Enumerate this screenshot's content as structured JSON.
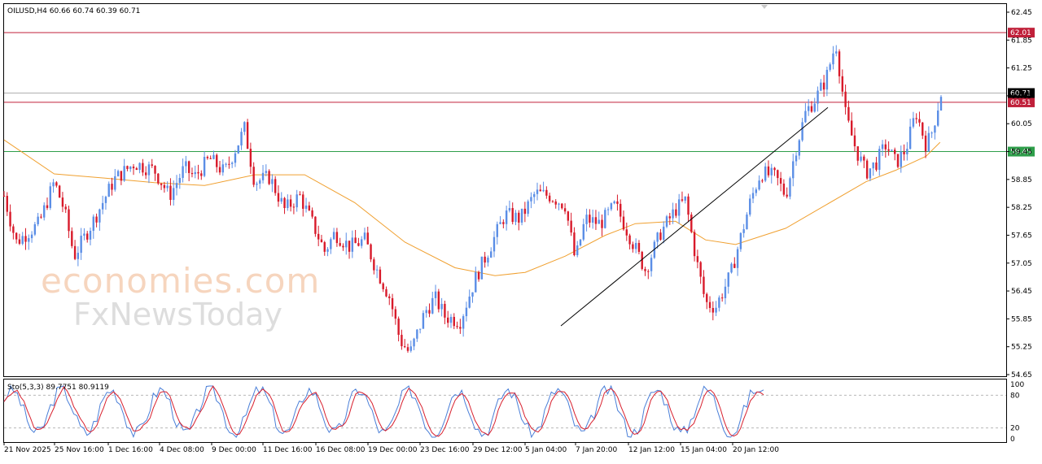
{
  "symbol_info": "OILUSD,H4  60.66 60.74 60.39 60.71",
  "stoch_info": "Sto(5,3,3) 89.7751 80.9119",
  "watermark": {
    "line1": "economies.com",
    "line2": "FxNewsToday"
  },
  "colors": {
    "bull": "#5b8ee6",
    "bear": "#d81a2a",
    "ma": "#f0a030",
    "resistance": "#c0203a",
    "support": "#2e9e4a",
    "trendline": "#000000",
    "stoch_main": "#4a7fd8",
    "stoch_signal": "#d8202e",
    "current_price_bg": "#000000",
    "axis_text": "#000000"
  },
  "chart_data": {
    "type": "candlestick",
    "timeframe": "H4",
    "ylim": [
      54.65,
      62.45
    ],
    "y_ticks": [
      "62.45",
      "61.85",
      "61.25",
      "60.65",
      "60.05",
      "59.45",
      "58.85",
      "58.25",
      "57.65",
      "57.05",
      "56.45",
      "55.85",
      "55.25",
      "54.65"
    ],
    "x_ticks": [
      "21 Nov 2025",
      "25 Nov 16:00",
      "1 Dec 16:00",
      "4 Dec 08:00",
      "9 Dec 00:00",
      "11 Dec 16:00",
      "16 Dec 08:00",
      "19 Dec 00:00",
      "23 Dec 16:00",
      "29 Dec 12:00",
      "5 Jan 04:00",
      "7 Jan 20:00",
      "12 Jan 12:00",
      "15 Jan 04:00",
      "20 Jan 12:00"
    ],
    "levels": [
      {
        "label": "62.01",
        "value": 62.01,
        "kind": "resistance"
      },
      {
        "label": "60.51",
        "value": 60.51,
        "kind": "resistance"
      },
      {
        "label": "59.45",
        "value": 59.45,
        "kind": "support"
      }
    ],
    "current_price": {
      "label": "60.71",
      "value": 60.71
    },
    "trendline": {
      "from": {
        "date": "5 Jan 04:00",
        "price": 55.7
      },
      "to": {
        "date": "22 Jan",
        "price": 60.4
      }
    },
    "moving_average_path": [
      [
        0,
        59.7
      ],
      [
        0.05,
        58.97
      ],
      [
        0.1,
        58.88
      ],
      [
        0.15,
        58.78
      ],
      [
        0.2,
        58.72
      ],
      [
        0.25,
        58.95
      ],
      [
        0.3,
        58.95
      ],
      [
        0.35,
        58.35
      ],
      [
        0.4,
        57.5
      ],
      [
        0.45,
        56.95
      ],
      [
        0.49,
        56.78
      ],
      [
        0.52,
        56.85
      ],
      [
        0.56,
        57.2
      ],
      [
        0.6,
        57.65
      ],
      [
        0.63,
        57.9
      ],
      [
        0.67,
        57.95
      ],
      [
        0.7,
        57.55
      ],
      [
        0.73,
        57.45
      ],
      [
        0.78,
        57.8
      ],
      [
        0.82,
        58.3
      ],
      [
        0.86,
        58.8
      ],
      [
        0.89,
        59.05
      ],
      [
        0.92,
        59.35
      ],
      [
        0.934,
        59.65
      ]
    ],
    "candles_anchor_path": [
      [
        0,
        58.5
      ],
      [
        0.012,
        57.5
      ],
      [
        0.035,
        57.9
      ],
      [
        0.05,
        58.8
      ],
      [
        0.06,
        58.2
      ],
      [
        0.07,
        57.2
      ],
      [
        0.09,
        58.0
      ],
      [
        0.11,
        58.85
      ],
      [
        0.13,
        59.2
      ],
      [
        0.15,
        59.05
      ],
      [
        0.165,
        58.5
      ],
      [
        0.18,
        59.1
      ],
      [
        0.19,
        58.9
      ],
      [
        0.205,
        59.3
      ],
      [
        0.22,
        59.0
      ],
      [
        0.235,
        59.7
      ],
      [
        0.24,
        59.95
      ],
      [
        0.25,
        58.8
      ],
      [
        0.265,
        58.9
      ],
      [
        0.28,
        58.2
      ],
      [
        0.295,
        58.5
      ],
      [
        0.31,
        57.8
      ],
      [
        0.32,
        57.3
      ],
      [
        0.33,
        57.7
      ],
      [
        0.345,
        57.4
      ],
      [
        0.36,
        57.55
      ],
      [
        0.37,
        57.0
      ],
      [
        0.385,
        56.3
      ],
      [
        0.395,
        55.4
      ],
      [
        0.405,
        55.1
      ],
      [
        0.42,
        56.0
      ],
      [
        0.43,
        56.3
      ],
      [
        0.44,
        55.9
      ],
      [
        0.455,
        55.8
      ],
      [
        0.47,
        56.7
      ],
      [
        0.485,
        57.4
      ],
      [
        0.5,
        58.1
      ],
      [
        0.515,
        58.0
      ],
      [
        0.53,
        58.55
      ],
      [
        0.545,
        58.5
      ],
      [
        0.56,
        58.3
      ],
      [
        0.57,
        57.1
      ],
      [
        0.58,
        58.0
      ],
      [
        0.595,
        57.9
      ],
      [
        0.61,
        58.3
      ],
      [
        0.625,
        57.6
      ],
      [
        0.64,
        56.9
      ],
      [
        0.655,
        57.7
      ],
      [
        0.67,
        58.2
      ],
      [
        0.68,
        58.4
      ],
      [
        0.69,
        57.2
      ],
      [
        0.7,
        56.2
      ],
      [
        0.71,
        56.1
      ],
      [
        0.725,
        56.8
      ],
      [
        0.735,
        57.6
      ],
      [
        0.745,
        58.4
      ],
      [
        0.755,
        59.0
      ],
      [
        0.77,
        58.9
      ],
      [
        0.78,
        58.5
      ],
      [
        0.79,
        59.5
      ],
      [
        0.8,
        60.3
      ],
      [
        0.81,
        60.6
      ],
      [
        0.82,
        61.0
      ],
      [
        0.83,
        61.8
      ],
      [
        0.84,
        60.2
      ],
      [
        0.85,
        59.5
      ],
      [
        0.86,
        59.0
      ],
      [
        0.87,
        59.2
      ],
      [
        0.88,
        59.6
      ],
      [
        0.89,
        59.2
      ],
      [
        0.9,
        59.5
      ],
      [
        0.91,
        60.3
      ],
      [
        0.92,
        59.6
      ],
      [
        0.925,
        59.8
      ],
      [
        0.935,
        60.7
      ]
    ],
    "stochastic": {
      "levels": [
        80,
        20
      ],
      "axis_labels": [
        "100",
        "80",
        "20",
        "0"
      ],
      "ylim": [
        0,
        100
      ]
    }
  }
}
